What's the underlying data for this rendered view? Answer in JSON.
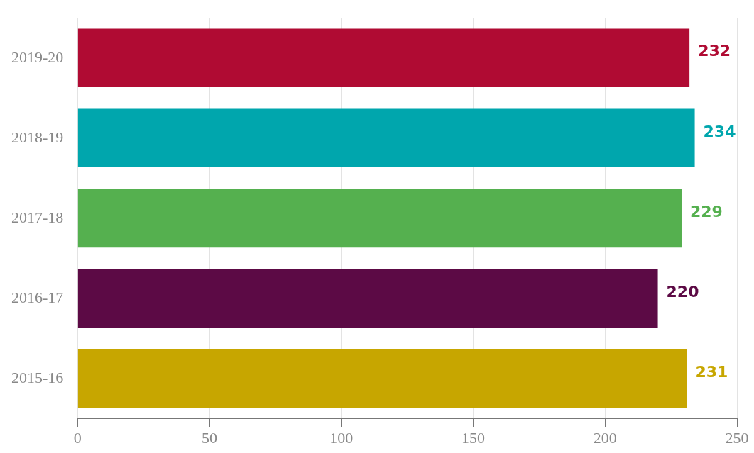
{
  "chart_data": {
    "type": "bar",
    "orientation": "horizontal",
    "categories": [
      "2019-20",
      "2018-19",
      "2017-18",
      "2016-17",
      "2015-16"
    ],
    "values": [
      232,
      234,
      229,
      220,
      231
    ],
    "colors": [
      "#b00b33",
      "#00a6ad",
      "#55b04f",
      "#5c0a45",
      "#c7a600"
    ],
    "xlim": [
      0,
      250
    ],
    "xticks": [
      0,
      50,
      100,
      150,
      200,
      250
    ],
    "grid": "x",
    "data_labels": true,
    "legend": false
  }
}
